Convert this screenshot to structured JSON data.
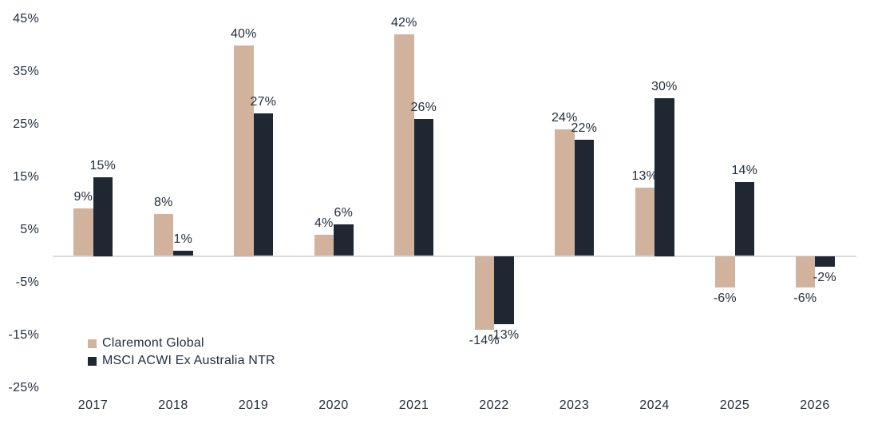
{
  "chart_data": {
    "type": "bar",
    "title": "",
    "categories": [
      "2017",
      "2018",
      "2019",
      "2020",
      "2021",
      "2022",
      "2023",
      "2024",
      "2025",
      "2026"
    ],
    "series": [
      {
        "name": "Claremont Global",
        "color": "#d1b29d",
        "values": [
          9,
          8,
          40,
          4,
          42,
          -14,
          24,
          13,
          -6,
          -6
        ]
      },
      {
        "name": "MSCI ACWI Ex Australia NTR",
        "color": "#1e2732",
        "values": [
          15,
          1,
          27,
          6,
          26,
          -13,
          22,
          30,
          14,
          -2
        ]
      }
    ],
    "value_label_suffix": "%",
    "y_ticks": [
      "45%",
      "35%",
      "25%",
      "15%",
      "5%",
      "-5%",
      "-15%",
      "-25%"
    ],
    "ylim": [
      -25,
      45
    ],
    "grid": false,
    "legend_position": "inside-bottom-left",
    "axis_line_color": "#dadada",
    "text_color": "#242e3c",
    "background_color": "#ffffff"
  }
}
